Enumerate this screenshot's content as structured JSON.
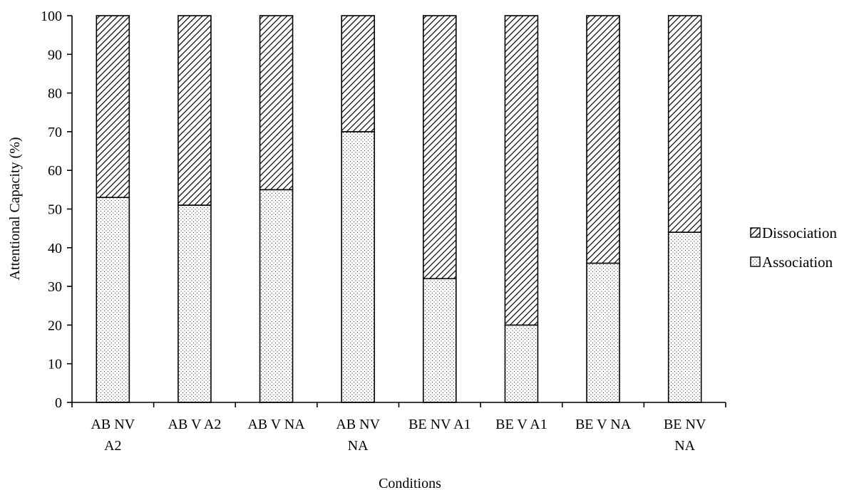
{
  "chart_data": {
    "type": "bar",
    "stacked": true,
    "categories": [
      "AB NV A2",
      "AB V A2",
      "AB V NA",
      "AB NV NA",
      "BE NV A1",
      "BE V A1",
      "BE V NA",
      "BE NV NA"
    ],
    "category_lines": [
      [
        "AB NV",
        "A2"
      ],
      [
        "AB V A2"
      ],
      [
        "AB V NA"
      ],
      [
        "AB NV",
        "NA"
      ],
      [
        "BE NV A1"
      ],
      [
        "BE V A1"
      ],
      [
        "BE V NA"
      ],
      [
        "BE NV",
        "NA"
      ]
    ],
    "series": [
      {
        "name": "Association",
        "values": [
          53,
          51,
          55,
          70,
          32,
          20,
          36,
          44
        ],
        "pattern": "dots"
      },
      {
        "name": "Dissociation",
        "values": [
          47,
          49,
          45,
          30,
          68,
          80,
          64,
          56
        ],
        "pattern": "hatch"
      }
    ],
    "legend_order": [
      "Dissociation",
      "Association"
    ],
    "legend_position": "right",
    "xlabel": "Conditions",
    "ylabel": "Attentional Capacity (%)",
    "ylim": [
      0,
      100
    ],
    "yticks": [
      0,
      10,
      20,
      30,
      40,
      50,
      60,
      70,
      80,
      90,
      100
    ],
    "grid": false,
    "colors": {
      "bar_outline": "#000000",
      "pattern": "#000000",
      "background": "#ffffff"
    }
  }
}
